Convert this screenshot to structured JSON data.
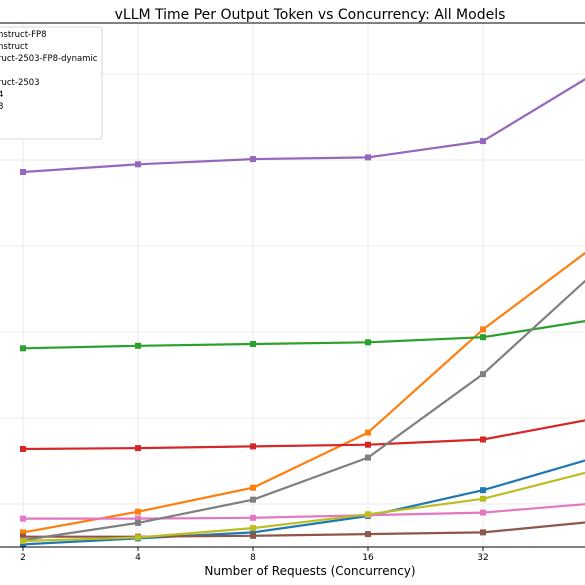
{
  "chart_data": {
    "type": "line",
    "title": "vLLM Time Per Output Token vs Concurrency: All Models",
    "xlabel": "Number of Requests (Concurrency)",
    "ylabel": "",
    "x_scale": "log2",
    "x": [
      2,
      4,
      8,
      16,
      32,
      64
    ],
    "x_tick_labels": [
      "2",
      "4",
      "8",
      "16",
      "32"
    ],
    "grid": true,
    "legend_placement": "upper-left",
    "series": [
      {
        "name": "nstruct-FP8",
        "color": "#1f77b4",
        "values": [
          3,
          10,
          17,
          36,
          66,
          105
        ]
      },
      {
        "name": "nstruct",
        "color": "#ff7f0e",
        "values": [
          17,
          41,
          69,
          133,
          253,
          353
        ]
      },
      {
        "name": "ruct-2503-FP8-dynamic",
        "color": "#2ca02c",
        "values": [
          231,
          234,
          236,
          238,
          244,
          265
        ]
      },
      {
        "name": "",
        "color": "#d62728",
        "values": [
          114,
          115,
          117,
          119,
          125,
          150
        ]
      },
      {
        "name": "ruct-2503",
        "color": "#9467bd",
        "values": [
          436,
          445,
          451,
          453,
          472,
          553
        ]
      },
      {
        "name": "4",
        "color": "#8c564b",
        "values": [
          12,
          12,
          13,
          15,
          17,
          30
        ]
      },
      {
        "name": "8",
        "color": "#e377c2",
        "values": [
          33,
          33,
          34,
          37,
          40,
          51
        ]
      },
      {
        "name": "",
        "color": "#7f7f7f",
        "values": [
          8,
          28,
          55,
          104,
          201,
          323
        ]
      },
      {
        "name": "",
        "color": "#bcbd22",
        "values": [
          7,
          11,
          22,
          38,
          56,
          90
        ]
      }
    ]
  }
}
